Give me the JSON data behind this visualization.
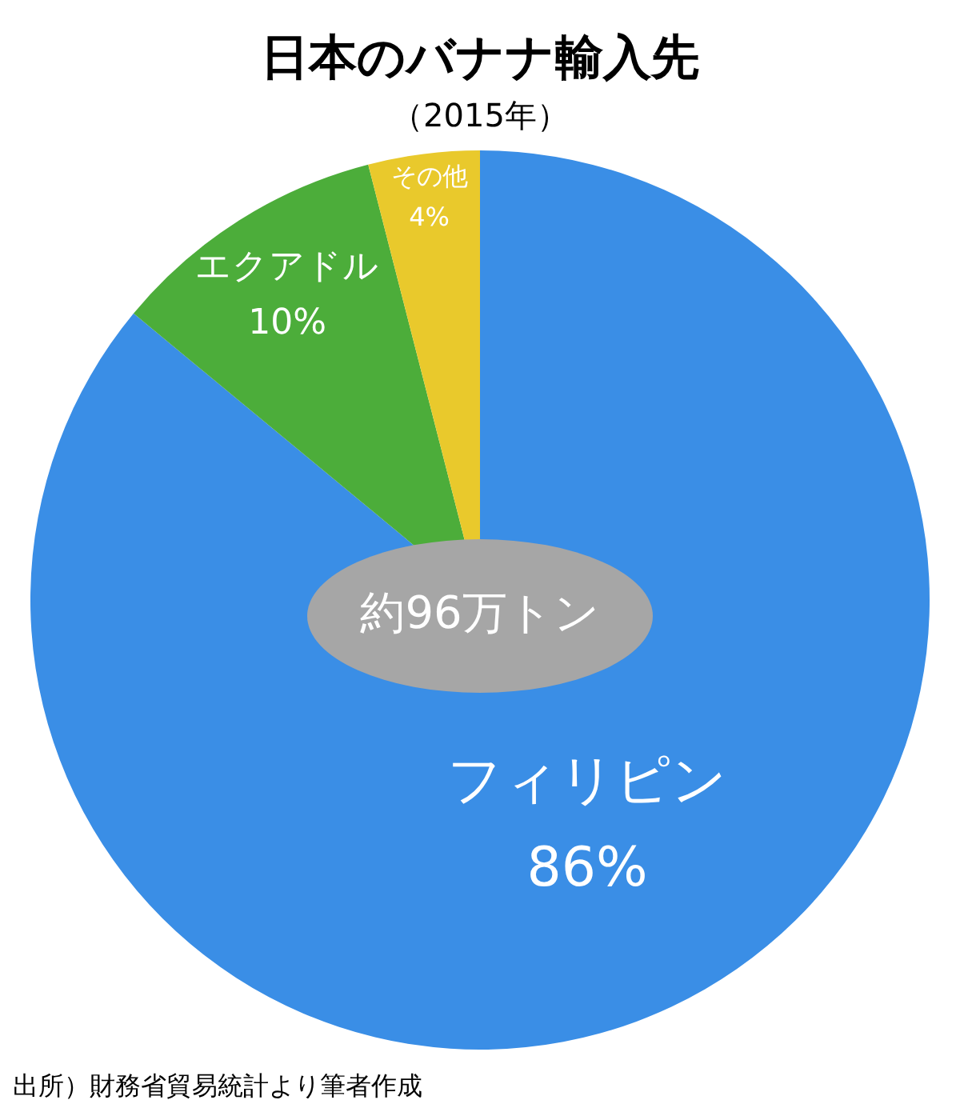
{
  "chart_data": {
    "type": "pie",
    "title": "日本のバナナ輸入先",
    "subtitle": "（2015年）",
    "categories": [
      "フィリピン",
      "エクアドル",
      "その他"
    ],
    "values": [
      86,
      10,
      4
    ],
    "colors": [
      "#3a8ee6",
      "#4cad3a",
      "#e9c92c"
    ],
    "value_labels": [
      "86%",
      "10%",
      "4%"
    ],
    "legend": false,
    "annotations": [
      "約96万トン",
      "出所）財務省貿易統計より筆者作成"
    ]
  }
}
